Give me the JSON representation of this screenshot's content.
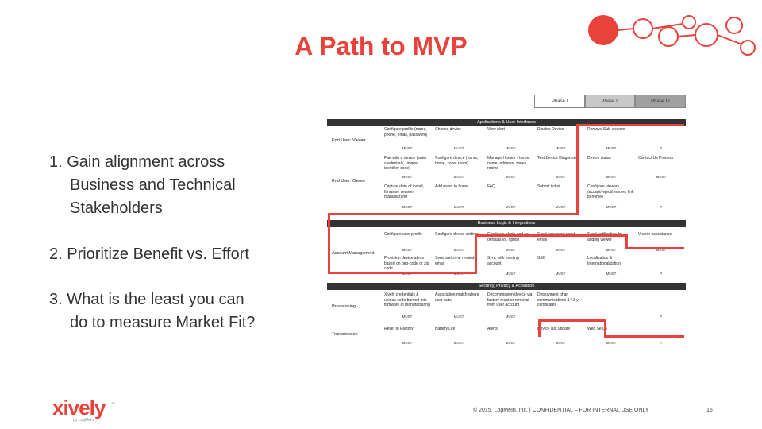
{
  "slide": {
    "title": "A Path to MVP",
    "points": [
      {
        "line1": "1. Gain alignment across",
        "line2": "Business and Technical",
        "line3": "Stakeholders"
      },
      {
        "line1": "2. Prioritize Benefit vs. Effort"
      },
      {
        "line1": "3. What is the least you can",
        "line2": "do to measure Market Fit?"
      }
    ],
    "footer": "© 2015, LogMeIn, Inc. | CONFIDENTIAL – FOR INTERNAL USE ONLY",
    "page_number": "15",
    "logo": {
      "word": "xively",
      "sub": "by LogMeIn",
      "tm": "™"
    },
    "accent_color": "#e8423a"
  },
  "table": {
    "phases": [
      "Phase I",
      "Phase II",
      "Phase III"
    ],
    "sections": [
      "Applications & User Interfaces",
      "Business Logic & Integrations",
      "Security, Privacy & Activation"
    ],
    "row_labels": [
      "End User: Viewer",
      "End User: Owner",
      "Account Management",
      "Provisioning",
      "Transmission"
    ],
    "rows": [
      {
        "cells": [
          "Configure profile (name, phone, email, password)",
          "Choose device",
          "View alert",
          "Disable Device",
          "Remove Sub-viewers",
          ""
        ],
        "tags": [
          "MUST",
          "MUST",
          "MUST",
          "MUST",
          "MUST",
          "?"
        ]
      },
      {
        "cells": [
          "Pair with a device (enter credentials, unique identifier code)",
          "Configure device (name, home, zone, room)",
          "Manage Homes - home, name, address, zones, rooms",
          "Test Device Diagnostics",
          "Device status",
          "Contact Us Process"
        ],
        "tags": [
          "MUST",
          "MUST",
          "MUST",
          "MUST",
          "MUST",
          "MUST"
        ]
      },
      {
        "cells": [
          "Capture date of install, firmware version, manufacturer",
          "Add users to home",
          "FAQ",
          "Submit ticket",
          "Configure viewers (accept/reject/remove, link to home)",
          ""
        ],
        "tags": [
          "MUST",
          "MUST",
          "MUST",
          "MUST",
          "MUST",
          "?"
        ]
      },
      {
        "cells": [
          "Configure user profile",
          "Configure device settings",
          "Configure alerts and set defaults vs. option",
          "Send password reset email",
          "Send notification for adding viewer",
          "Viewer acceptance"
        ],
        "tags": [
          "MUST",
          "MUST",
          "MUST",
          "MUST",
          "MUST",
          "MUST"
        ]
      },
      {
        "cells": [
          "Provision device alerts based on geo-code or zip code",
          "Send welcome reminder email",
          "Sync with existing account",
          "SSO",
          "Localization & Internationalization",
          ""
        ],
        "tags": [
          "MUST",
          "MUST",
          "MUST",
          "MUST",
          "MUST",
          "?"
        ]
      },
      {
        "cells": [
          "Xively credentials & unique code burned into firmware at manufacturing",
          "Association match where user puts",
          "Decommission device via factory reset or removal from user account",
          "Deployment of an communications & / 3 yr certificates",
          "",
          ""
        ],
        "tags": [
          "MUST",
          "MUST",
          "MUST",
          "",
          "",
          "?"
        ]
      },
      {
        "cells": [
          "Reset to Factory",
          "Battery Life",
          "Alerts",
          "Device last update",
          "Web Setup",
          ""
        ],
        "tags": [
          "MUST",
          "MUST",
          "MUST",
          "MUST",
          "MUST",
          "?"
        ]
      }
    ]
  }
}
